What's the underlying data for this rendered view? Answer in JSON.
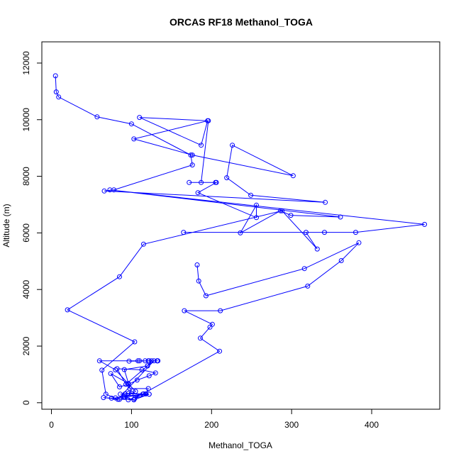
{
  "chart_data": {
    "type": "line",
    "title": "ORCAS RF18 Methanol_TOGA",
    "xlabel": "Methanol_TOGA",
    "ylabel": "Altitude (m)",
    "xlim": [
      -12,
      485
    ],
    "ylim": [
      -230,
      12750
    ],
    "xticks": [
      0,
      100,
      200,
      300,
      400
    ],
    "yticks": [
      0,
      2000,
      4000,
      6000,
      8000,
      10000,
      12000
    ],
    "grid": false,
    "color": "#0000ff",
    "points": [
      [
        5,
        11550
      ],
      [
        6,
        10980
      ],
      [
        9,
        10800
      ],
      [
        57,
        10100
      ],
      [
        100,
        9850
      ],
      [
        174,
        8750
      ],
      [
        176,
        8400
      ],
      [
        78,
        7520
      ],
      [
        66,
        7480
      ],
      [
        342,
        7080
      ],
      [
        249,
        7330
      ],
      [
        219,
        7950
      ],
      [
        226,
        9100
      ],
      [
        302,
        8020
      ],
      [
        176,
        8750
      ],
      [
        103,
        9320
      ],
      [
        195,
        9960
      ],
      [
        187,
        9100
      ],
      [
        110,
        10080
      ],
      [
        196,
        9960
      ],
      [
        187,
        7780
      ],
      [
        205,
        7780
      ],
      [
        172,
        7780
      ],
      [
        206,
        7780
      ],
      [
        183,
        7420
      ],
      [
        256,
        6540
      ],
      [
        256,
        6980
      ],
      [
        236,
        6000
      ],
      [
        286,
        6780
      ],
      [
        299,
        6620
      ],
      [
        361,
        6560
      ],
      [
        73,
        7520
      ],
      [
        466,
        6300
      ],
      [
        380,
        6020
      ],
      [
        165,
        6020
      ],
      [
        341,
        6020
      ],
      [
        318,
        6020
      ],
      [
        332,
        5430
      ],
      [
        288,
        6780
      ],
      [
        115,
        5600
      ],
      [
        85,
        4450
      ],
      [
        20,
        3280
      ],
      [
        104,
        2150
      ],
      [
        63,
        1150
      ],
      [
        68,
        300
      ],
      [
        83,
        120
      ],
      [
        128,
        1480
      ],
      [
        120,
        1300
      ],
      [
        91,
        1170
      ],
      [
        100,
        330
      ],
      [
        92,
        200
      ],
      [
        105,
        400
      ],
      [
        80,
        1160
      ],
      [
        60,
        1480
      ],
      [
        108,
        1480
      ],
      [
        133,
        1480
      ],
      [
        117,
        1480
      ],
      [
        122,
        1480
      ],
      [
        97,
        1470
      ],
      [
        132,
        1480
      ],
      [
        121,
        1480
      ],
      [
        110,
        1480
      ],
      [
        132,
        1480
      ],
      [
        125,
        1480
      ],
      [
        120,
        1300
      ],
      [
        93,
        650
      ],
      [
        82,
        1200
      ],
      [
        113,
        1160
      ],
      [
        130,
        1050
      ],
      [
        122,
        950
      ],
      [
        107,
        800
      ],
      [
        96,
        650
      ],
      [
        85,
        560
      ],
      [
        74,
        1030
      ],
      [
        96,
        680
      ],
      [
        98,
        500
      ],
      [
        121,
        500
      ],
      [
        118,
        310
      ],
      [
        92,
        310
      ],
      [
        86,
        300
      ],
      [
        96,
        330
      ],
      [
        122,
        300
      ],
      [
        91,
        200
      ],
      [
        114,
        300
      ],
      [
        80,
        170
      ],
      [
        75,
        160
      ],
      [
        65,
        180
      ],
      [
        85,
        120
      ],
      [
        103,
        110
      ],
      [
        96,
        100
      ],
      [
        115,
        310
      ],
      [
        90,
        200
      ],
      [
        103,
        100
      ],
      [
        122,
        300
      ],
      [
        104,
        150
      ],
      [
        210,
        1820
      ],
      [
        186,
        2280
      ],
      [
        198,
        2670
      ],
      [
        201,
        2770
      ],
      [
        166,
        3250
      ],
      [
        211,
        3250
      ],
      [
        320,
        4120
      ],
      [
        362,
        5020
      ],
      [
        384,
        5650
      ],
      [
        316,
        4740
      ],
      [
        193,
        3780
      ],
      [
        184,
        4300
      ],
      [
        182,
        4870
      ]
    ]
  }
}
